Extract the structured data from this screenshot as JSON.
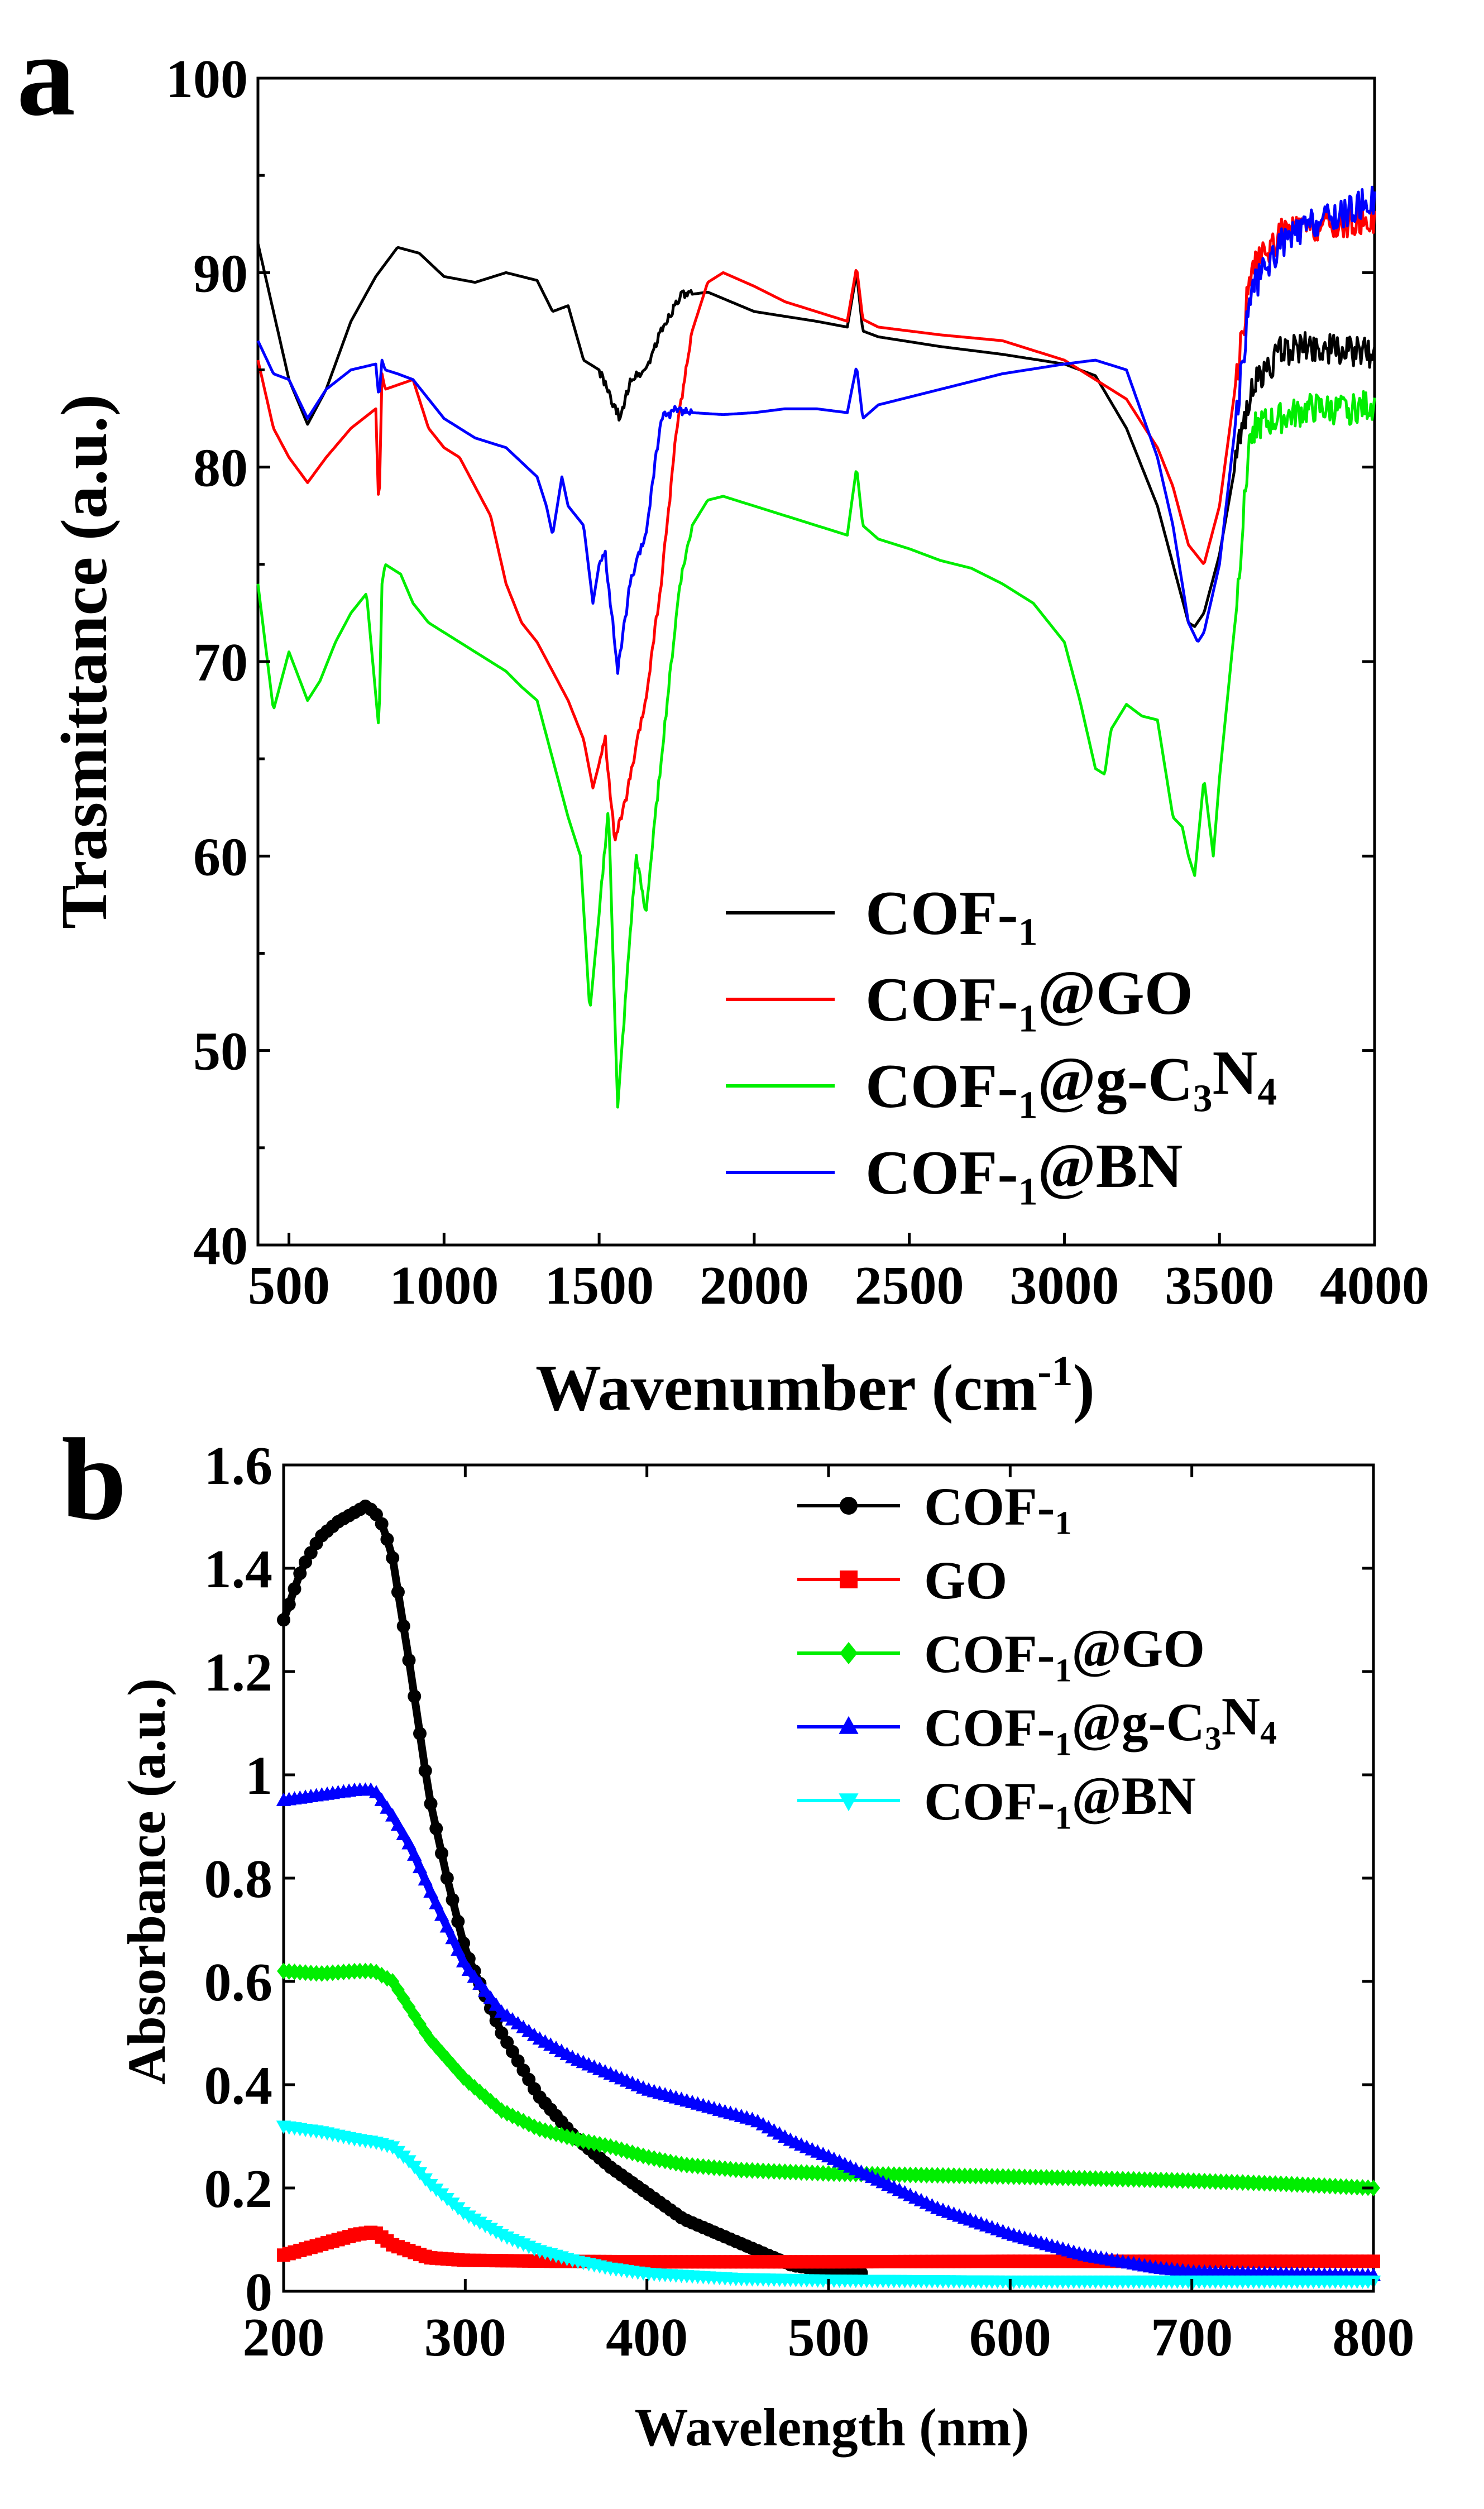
{
  "chart_data": [
    {
      "type": "line",
      "panel_label": "a",
      "title": "",
      "xlabel": "Wavenumber (cm",
      "xlabel_superscript": "-1",
      "xlabel_suffix": ")",
      "ylabel": "Trasmittance (a.u.)",
      "xlim": [
        400,
        4000
      ],
      "ylim": [
        40,
        100
      ],
      "xticks": [
        500,
        1000,
        1500,
        2000,
        2500,
        3000,
        3500,
        4000
      ],
      "yticks": [
        40,
        50,
        60,
        70,
        80,
        90,
        100
      ],
      "legend_position": "bottom-right",
      "series": [
        {
          "name": "COF-1",
          "color": "#000000",
          "x": [
            400,
            500,
            560,
            620,
            700,
            780,
            850,
            920,
            1000,
            1100,
            1200,
            1300,
            1350,
            1400,
            1450,
            1500,
            1550,
            1570,
            1600,
            1650,
            1700,
            1760,
            1850,
            2000,
            2200,
            2300,
            2330,
            2350,
            2400,
            2600,
            2800,
            3000,
            3100,
            3200,
            3300,
            3350,
            3400,
            3420,
            3450,
            3500,
            3550,
            3600,
            3700,
            3800,
            3900,
            4000
          ],
          "y": [
            91.5,
            84.5,
            82.2,
            84,
            87.5,
            89.8,
            91.3,
            91,
            89.8,
            89.5,
            90,
            89.6,
            88,
            88.3,
            85.5,
            85,
            83,
            82.5,
            84.5,
            85,
            87,
            88.8,
            89,
            88,
            87.5,
            87.2,
            90,
            87,
            86.7,
            86.2,
            85.8,
            85.3,
            84.7,
            82,
            78,
            75,
            72,
            71.8,
            72.5,
            75.5,
            80,
            84,
            86,
            86.2,
            86,
            85.8
          ]
        },
        {
          "name": "COF-1@GO",
          "color": "#ff0000",
          "x": [
            400,
            450,
            500,
            560,
            620,
            700,
            780,
            790,
            800,
            810,
            900,
            950,
            1000,
            1050,
            1100,
            1150,
            1200,
            1250,
            1300,
            1350,
            1400,
            1450,
            1480,
            1520,
            1550,
            1580,
            1600,
            1650,
            1700,
            1750,
            1800,
            1850,
            1900,
            2000,
            2100,
            2200,
            2300,
            2330,
            2350,
            2400,
            2600,
            2800,
            3000,
            3100,
            3200,
            3300,
            3350,
            3400,
            3450,
            3500,
            3550,
            3600,
            3700,
            3800,
            3900,
            4000
          ],
          "y": [
            85.5,
            82,
            80.5,
            79.2,
            80.5,
            82,
            83,
            77.5,
            84.8,
            84,
            84.5,
            82,
            81,
            80.5,
            79,
            77.5,
            74,
            72,
            71,
            69.5,
            68,
            66,
            63.5,
            66,
            60.8,
            62.5,
            64,
            68,
            74,
            82,
            87,
            89.5,
            90,
            89.3,
            88.5,
            88,
            87.5,
            90.3,
            87.6,
            87.2,
            86.8,
            86.5,
            85.5,
            84.5,
            83.5,
            81,
            79,
            76,
            75,
            78,
            84,
            90,
            92,
            92.3,
            92.5,
            92.8
          ]
        },
        {
          "name": "COF-1@g-C3N4",
          "color": "#00ee00",
          "x": [
            400,
            450,
            500,
            560,
            600,
            650,
            700,
            750,
            790,
            800,
            810,
            860,
            900,
            950,
            1000,
            1050,
            1100,
            1150,
            1200,
            1250,
            1300,
            1350,
            1400,
            1440,
            1470,
            1500,
            1530,
            1560,
            1600,
            1620,
            1650,
            1700,
            1760,
            1800,
            1850,
            1900,
            2000,
            2100,
            2200,
            2300,
            2330,
            2350,
            2400,
            2500,
            2600,
            2700,
            2800,
            2900,
            3000,
            3050,
            3100,
            3130,
            3150,
            3200,
            3250,
            3300,
            3350,
            3380,
            3400,
            3420,
            3450,
            3480,
            3500,
            3550,
            3600,
            3700,
            3800,
            3900,
            4000
          ],
          "y": [
            74,
            67.5,
            70.5,
            68,
            69,
            71,
            72.5,
            73.5,
            66.5,
            74,
            75,
            74.5,
            73,
            72,
            71.5,
            71,
            70.5,
            70,
            69.5,
            68.7,
            68,
            65,
            62,
            60,
            52,
            57,
            62.5,
            47,
            56,
            60,
            57,
            65,
            74,
            77,
            78.3,
            78.5,
            78,
            77.5,
            77,
            76.5,
            80,
            77,
            76.3,
            75.8,
            75.2,
            74.8,
            74,
            73,
            71,
            68,
            64.5,
            64.2,
            66.5,
            67.8,
            67.2,
            67,
            62,
            61.5,
            60,
            59,
            64,
            60,
            64,
            72,
            82,
            82.5,
            83,
            82.9,
            83.2
          ]
        },
        {
          "name": "COF-1@BN",
          "color": "#0000ff",
          "x": [
            400,
            450,
            500,
            560,
            620,
            700,
            780,
            790,
            800,
            810,
            850,
            900,
            950,
            1000,
            1100,
            1200,
            1300,
            1330,
            1350,
            1380,
            1400,
            1450,
            1480,
            1500,
            1520,
            1560,
            1600,
            1650,
            1700,
            1750,
            1800,
            1900,
            2000,
            2100,
            2200,
            2300,
            2330,
            2350,
            2400,
            2600,
            2800,
            3000,
            3100,
            3200,
            3300,
            3350,
            3400,
            3430,
            3450,
            3500,
            3550,
            3600,
            3700,
            3800,
            3900,
            4000
          ],
          "y": [
            86.5,
            84.8,
            84.5,
            82.5,
            84,
            85,
            85.3,
            83.5,
            85.5,
            85,
            84.8,
            84.5,
            83.5,
            82.5,
            81.5,
            81,
            79.5,
            78,
            76.5,
            79.5,
            78,
            77,
            73,
            75,
            75.5,
            69.5,
            74,
            76.5,
            82.5,
            83,
            82.8,
            82.7,
            82.8,
            83,
            83,
            82.8,
            85.2,
            82.5,
            83.2,
            84,
            84.8,
            85.3,
            85.5,
            85,
            80.5,
            77,
            72,
            71,
            71.5,
            75,
            82,
            89,
            91.5,
            92.5,
            93,
            93.8
          ]
        }
      ]
    },
    {
      "type": "scatter",
      "panel_label": "b",
      "title": "",
      "xlabel": "Wavelength (nm)",
      "ylabel": "Absorbance (a.u.)",
      "xlim": [
        200,
        800
      ],
      "ylim": [
        0,
        1.6
      ],
      "xticks": [
        200,
        300,
        400,
        500,
        600,
        700,
        800
      ],
      "yticks": [
        0,
        0.2,
        0.4,
        0.6,
        0.8,
        1,
        1.2,
        1.4,
        1.6
      ],
      "ytick_labels": [
        "0",
        "0.2",
        "0.4",
        "0.6",
        "0.8",
        "1",
        "1.2",
        "1.4",
        "1.6"
      ],
      "legend_position": "top-right",
      "series": [
        {
          "name": "COF-1",
          "color": "#000000",
          "marker": "circle",
          "x": [
            200,
            210,
            220,
            230,
            240,
            245,
            250,
            255,
            260,
            270,
            280,
            290,
            300,
            320,
            340,
            360,
            380,
            400,
            420,
            440,
            460,
            480,
            500,
            520
          ],
          "y": [
            1.3,
            1.4,
            1.46,
            1.49,
            1.51,
            1.52,
            1.51,
            1.48,
            1.42,
            1.2,
            0.96,
            0.8,
            0.66,
            0.5,
            0.38,
            0.3,
            0.24,
            0.19,
            0.14,
            0.11,
            0.08,
            0.05,
            0.04,
            0.035
          ]
        },
        {
          "name": "GO",
          "color": "#ff0000",
          "marker": "square",
          "x": [
            200,
            220,
            240,
            250,
            260,
            280,
            300,
            350,
            400,
            500,
            600,
            700,
            800
          ],
          "y": [
            0.07,
            0.09,
            0.11,
            0.115,
            0.09,
            0.065,
            0.06,
            0.058,
            0.057,
            0.057,
            0.058,
            0.058,
            0.058
          ]
        },
        {
          "name": "COF-1@GO",
          "color": "#00ee00",
          "marker": "diamond",
          "x": [
            200,
            220,
            240,
            250,
            260,
            280,
            300,
            320,
            340,
            360,
            380,
            400,
            420,
            450,
            500,
            550,
            600,
            650,
            700,
            750,
            800
          ],
          "y": [
            0.62,
            0.615,
            0.62,
            0.62,
            0.6,
            0.49,
            0.41,
            0.35,
            0.315,
            0.295,
            0.28,
            0.26,
            0.245,
            0.235,
            0.228,
            0.225,
            0.222,
            0.218,
            0.214,
            0.208,
            0.2
          ]
        },
        {
          "name": "COF-1@g-C3N4",
          "color": "#0000ff",
          "marker": "triangle-up",
          "x": [
            200,
            220,
            240,
            250,
            260,
            270,
            280,
            300,
            320,
            340,
            360,
            380,
            400,
            420,
            440,
            460,
            480,
            500,
            530,
            560,
            600,
            640,
            680,
            700,
            750,
            800
          ],
          "y": [
            0.95,
            0.96,
            0.97,
            0.97,
            0.92,
            0.86,
            0.78,
            0.63,
            0.54,
            0.49,
            0.45,
            0.42,
            0.39,
            0.37,
            0.35,
            0.33,
            0.29,
            0.26,
            0.21,
            0.16,
            0.11,
            0.07,
            0.045,
            0.037,
            0.033,
            0.03
          ]
        },
        {
          "name": "COF-1@BN",
          "color": "#00ffff",
          "marker": "triangle-down",
          "x": [
            200,
            220,
            240,
            250,
            260,
            270,
            280,
            300,
            320,
            340,
            360,
            380,
            400,
            450,
            500,
            550,
            600,
            700,
            800
          ],
          "y": [
            0.32,
            0.31,
            0.295,
            0.29,
            0.28,
            0.25,
            0.21,
            0.15,
            0.11,
            0.08,
            0.06,
            0.045,
            0.035,
            0.025,
            0.022,
            0.021,
            0.02,
            0.02,
            0.02
          ]
        }
      ]
    }
  ]
}
